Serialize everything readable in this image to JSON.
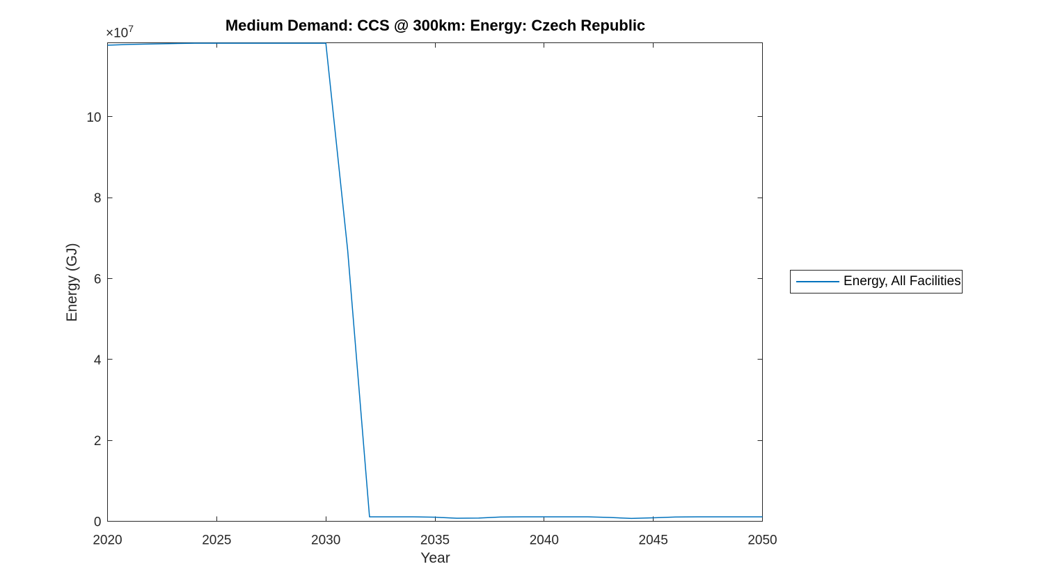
{
  "title": "Medium Demand: CCS @ 300km: Energy: Czech Republic",
  "x_axis": {
    "label": "Year"
  },
  "y_axis": {
    "label": "Energy (GJ)",
    "multiplier_base": "×10",
    "multiplier_exponent": "7"
  },
  "legend": {
    "position": "outside-right",
    "entries": [
      {
        "label": "Energy, All Facilities",
        "color": "#0072BD"
      }
    ]
  },
  "colors": {
    "series_blue": "#0072BD",
    "axis": "#262626",
    "tick_text": "#262626",
    "title_text": "#000000",
    "background": "#ffffff"
  },
  "chart_data": {
    "type": "line",
    "title": "Medium Demand: CCS @ 300km: Energy: Czech Republic",
    "xlabel": "Year",
    "ylabel": "Energy (GJ)",
    "xlim": [
      2020,
      2050
    ],
    "ylim": [
      0,
      118300000
    ],
    "x_ticks": [
      2020,
      2025,
      2030,
      2035,
      2040,
      2045,
      2050
    ],
    "x_tick_labels": [
      "2020",
      "2025",
      "2030",
      "2035",
      "2040",
      "2045",
      "2050"
    ],
    "y_ticks": [
      0,
      20000000,
      40000000,
      60000000,
      80000000,
      100000000
    ],
    "y_tick_labels": [
      "0",
      "2",
      "4",
      "6",
      "8",
      "10"
    ],
    "y_tick_multiplier": "×10^7",
    "grid": false,
    "box": true,
    "tick_direction": "in",
    "legend_position": "outside-right",
    "series": [
      {
        "name": "Energy, All Facilities",
        "color": "#0072BD",
        "x": [
          2020,
          2021,
          2022,
          2023,
          2024,
          2025,
          2026,
          2027,
          2028,
          2029,
          2030,
          2031,
          2032,
          2033,
          2034,
          2035,
          2036,
          2037,
          2038,
          2039,
          2040,
          2041,
          2042,
          2043,
          2044,
          2045,
          2046,
          2047,
          2048,
          2049,
          2050
        ],
        "y": [
          117700000,
          117900000,
          118000000,
          118100000,
          118200000,
          118200000,
          118200000,
          118200000,
          118200000,
          118200000,
          118200000,
          67000000,
          1100000,
          1100000,
          1100000,
          1000000,
          750000,
          800000,
          1050000,
          1100000,
          1100000,
          1100000,
          1100000,
          950000,
          700000,
          850000,
          1050000,
          1100000,
          1100000,
          1100000,
          1100000
        ]
      }
    ]
  }
}
